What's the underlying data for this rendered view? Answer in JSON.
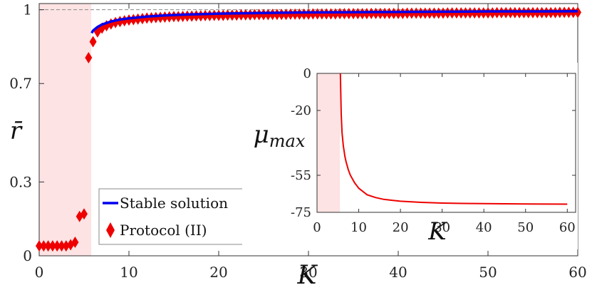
{
  "chart_data": [
    {
      "type": "scatter",
      "xlabel": "K",
      "ylabel": "r̄",
      "xlim": [
        0,
        60
      ],
      "ylim": [
        0,
        1.025
      ],
      "xticks": [
        0,
        10,
        20,
        30,
        40,
        50,
        60
      ],
      "xtick_labels": [
        "0",
        "10",
        "20",
        "30",
        "40",
        "50",
        "60"
      ],
      "yticks": [
        0,
        0.3,
        0.7,
        1
      ],
      "ytick_labels": [
        "0",
        "0.3",
        "0.7",
        "1"
      ],
      "reference_line": 1,
      "shaded_region": [
        0,
        5.8
      ],
      "legend_position": "bottom-left",
      "series": [
        {
          "name": "Stable solution",
          "kind": "line",
          "color": "#0000ee",
          "x": [
            5.85,
            6,
            6.5,
            7,
            8,
            9,
            10,
            12,
            14,
            16,
            18,
            20,
            25,
            30,
            35,
            40,
            45,
            50,
            55,
            60
          ],
          "y": [
            0.905,
            0.915,
            0.93,
            0.94,
            0.952,
            0.96,
            0.965,
            0.972,
            0.977,
            0.98,
            0.982,
            0.984,
            0.987,
            0.989,
            0.99,
            0.991,
            0.992,
            0.993,
            0.993,
            0.994
          ]
        },
        {
          "name": "Protocol (II)",
          "kind": "markers",
          "marker": "diamond",
          "color": "#ee0000",
          "x": [
            0,
            0.5,
            1,
            1.5,
            2,
            2.5,
            3,
            3.5,
            4,
            4.5,
            5,
            5.5,
            6,
            6.5,
            7,
            7.5,
            8,
            8.5,
            9,
            9.5,
            10,
            10.5,
            11,
            11.5,
            12,
            12.5,
            13,
            13.5,
            14,
            14.5,
            15,
            15.5,
            16,
            16.5,
            17,
            17.5,
            18,
            18.5,
            19,
            19.5,
            20,
            20.5,
            21,
            21.5,
            22,
            22.5,
            23,
            23.5,
            24,
            24.5,
            25,
            25.5,
            26,
            26.5,
            27,
            27.5,
            28,
            28.5,
            29,
            29.5,
            30,
            30.5,
            31,
            31.5,
            32,
            32.5,
            33,
            33.5,
            34,
            34.5,
            35,
            35.5,
            36,
            36.5,
            37,
            37.5,
            38,
            38.5,
            39,
            39.5,
            40,
            40.5,
            41,
            41.5,
            42,
            42.5,
            43,
            43.5,
            44,
            44.5,
            45,
            45.5,
            46,
            46.5,
            47,
            47.5,
            48,
            48.5,
            49,
            49.5,
            50,
            50.5,
            51,
            51.5,
            52,
            52.5,
            53,
            53.5,
            54,
            54.5,
            55,
            55.5,
            56,
            56.5,
            57,
            57.5,
            58,
            58.5,
            59,
            59.5,
            60
          ],
          "y": [
            0.04,
            0.04,
            0.04,
            0.04,
            0.04,
            0.04,
            0.04,
            0.045,
            0.055,
            0.16,
            0.17,
            0.805,
            0.87,
            0.91,
            0.925,
            0.935,
            0.942,
            0.948,
            0.952,
            0.955,
            0.958,
            0.96,
            0.962,
            0.964,
            0.966,
            0.967,
            0.968,
            0.969,
            0.97,
            0.971,
            0.972,
            0.972,
            0.973,
            0.974,
            0.974,
            0.975,
            0.975,
            0.976,
            0.976,
            0.977,
            0.977,
            0.977,
            0.978,
            0.978,
            0.978,
            0.979,
            0.979,
            0.979,
            0.98,
            0.98,
            0.98,
            0.98,
            0.981,
            0.981,
            0.981,
            0.981,
            0.982,
            0.982,
            0.982,
            0.982,
            0.982,
            0.983,
            0.983,
            0.983,
            0.983,
            0.983,
            0.983,
            0.984,
            0.984,
            0.984,
            0.984,
            0.984,
            0.984,
            0.984,
            0.985,
            0.985,
            0.985,
            0.985,
            0.985,
            0.985,
            0.985,
            0.985,
            0.986,
            0.986,
            0.986,
            0.986,
            0.986,
            0.986,
            0.986,
            0.986,
            0.986,
            0.987,
            0.987,
            0.987,
            0.987,
            0.987,
            0.987,
            0.987,
            0.987,
            0.987,
            0.987,
            0.987,
            0.988,
            0.988,
            0.988,
            0.988,
            0.988,
            0.988,
            0.988,
            0.988,
            0.988,
            0.988,
            0.988,
            0.988,
            0.988,
            0.988,
            0.989,
            0.989,
            0.989,
            0.989,
            0.989
          ]
        }
      ]
    },
    {
      "type": "line",
      "role": "inset",
      "xlabel": "K",
      "ylabel": "μ_max",
      "ylabel_main": "μ",
      "ylabel_sub": "max",
      "xlim": [
        0,
        62
      ],
      "ylim": [
        -75,
        0
      ],
      "xticks": [
        0,
        10,
        20,
        30,
        40,
        50,
        60
      ],
      "xtick_labels": [
        "0",
        "10",
        "20",
        "30",
        "40",
        "50",
        "60"
      ],
      "yticks": [
        0,
        -20,
        -55,
        -75
      ],
      "ytick_labels": [
        "0",
        "-20",
        "-55",
        "-75"
      ],
      "shaded_region": [
        0,
        5.5
      ],
      "series": [
        {
          "name": "μ_max",
          "color": "#ee0000",
          "x": [
            5.6,
            5.8,
            6,
            6.3,
            6.7,
            7,
            7.5,
            8,
            9,
            10,
            12,
            14,
            16,
            18,
            20,
            25,
            30,
            35,
            40,
            45,
            50,
            55,
            60
          ],
          "y": [
            0,
            -22,
            -32,
            -39,
            -45,
            -48,
            -52,
            -55,
            -59,
            -62,
            -65.5,
            -67,
            -68,
            -68.5,
            -69,
            -69.6,
            -70,
            -70.2,
            -70.3,
            -70.4,
            -70.5,
            -70.55,
            -70.6
          ]
        }
      ]
    }
  ]
}
